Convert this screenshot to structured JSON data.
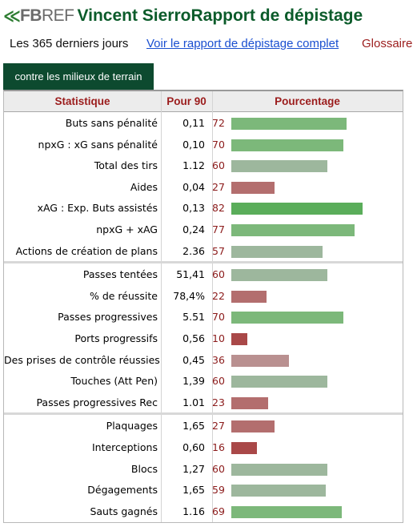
{
  "header": {
    "logo_fb": "FB",
    "logo_ref": "REF",
    "title": "Vincent SierroRapport de dépistage"
  },
  "subnav": {
    "period": "Les 365 derniers jours",
    "full_report_link": "Voir le rapport de dépistage complet",
    "glossary": "Glossaire"
  },
  "tab": {
    "label": "contre les milieux de terrain"
  },
  "table": {
    "columns": [
      "Statistique",
      "Pour 90",
      "Pourcentage"
    ],
    "groups": [
      [
        {
          "stat": "Buts sans pénalité",
          "per90": "0,11",
          "percentile": 72
        },
        {
          "stat": "npxG : xG sans pénalité",
          "per90": "0,10",
          "percentile": 70
        },
        {
          "stat": "Total des tirs",
          "per90": "1.12",
          "percentile": 60
        },
        {
          "stat": "Aides",
          "per90": "0,04",
          "percentile": 27
        },
        {
          "stat": "xAG : Exp. Buts assistés",
          "per90": "0,13",
          "percentile": 82
        },
        {
          "stat": "npxG + xAG",
          "per90": "0,24",
          "percentile": 77
        },
        {
          "stat": "Actions de création de plans",
          "per90": "2.36",
          "percentile": 57
        }
      ],
      [
        {
          "stat": "Passes tentées",
          "per90": "51,41",
          "percentile": 60
        },
        {
          "stat": "% de réussite",
          "per90": "78,4%",
          "percentile": 22
        },
        {
          "stat": "Passes progressives",
          "per90": "5.51",
          "percentile": 70
        },
        {
          "stat": "Ports progressifs",
          "per90": "0,56",
          "percentile": 10
        },
        {
          "stat": "Des prises de contrôle réussies",
          "per90": "0,45",
          "percentile": 36
        },
        {
          "stat": "Touches (Att Pen)",
          "per90": "1,39",
          "percentile": 60
        },
        {
          "stat": "Passes progressives Rec",
          "per90": "1.01",
          "percentile": 23
        }
      ],
      [
        {
          "stat": "Plaquages",
          "per90": "1,65",
          "percentile": 27
        },
        {
          "stat": "Interceptions",
          "per90": "0,60",
          "percentile": 16
        },
        {
          "stat": "Blocs",
          "per90": "1,27",
          "percentile": 60
        },
        {
          "stat": "Dégagements",
          "per90": "1,65",
          "percentile": 59
        },
        {
          "stat": "Sauts gagnés",
          "per90": "1.16",
          "percentile": 69
        }
      ]
    ]
  },
  "colors": {
    "title": "#0b5b2a",
    "tab_bg": "#0d4a2f",
    "link": "#1a4fd0",
    "glossary": "#9b1c1c",
    "header_text": "#9b1c1c",
    "pct_text": "#8b1a1a"
  }
}
